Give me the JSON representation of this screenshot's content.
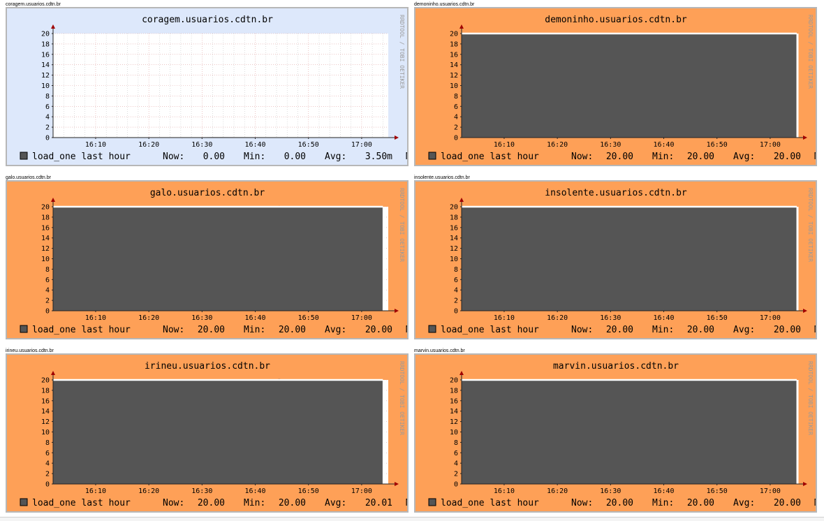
{
  "colors": {
    "normal_bg": "#dde8fb",
    "alert_bg": "#fea057",
    "area_fill": "#555555",
    "max_line": "#ffffff",
    "axis_arrow": "#a00000",
    "grid_major": "#e0a0a0",
    "grid_minor": "#c7c7c7",
    "frame_border": "#b7b7b7"
  },
  "watermark": "RRDTOOL / TOBI OETIKER",
  "graphs": [
    {
      "link_label": "coragem.usuarios.cdtn.br",
      "background": "normal",
      "chart_data": {
        "type": "area",
        "title": "coragem.usuarios.cdtn.br",
        "x_ticks": [
          "16:10",
          "16:20",
          "16:30",
          "16:40",
          "16:50",
          "17:00"
        ],
        "y_ticks": [
          0,
          2,
          4,
          6,
          8,
          10,
          12,
          14,
          16,
          18,
          20
        ],
        "ylim": [
          0,
          20
        ],
        "grid": true,
        "series": [
          {
            "name": "load_one last hour",
            "x": [
              "16:02",
              "16:30",
              "16:32",
              "16:45",
              "17:05"
            ],
            "values": [
              0,
              0,
              0.02,
              0,
              0
            ]
          }
        ],
        "stats": {
          "now_label": "Now:",
          "now": "0.00",
          "min_label": "Min:",
          "min": "0.00",
          "avg_label": "Avg:",
          "avg": "3.50m",
          "max_label": "M"
        }
      }
    },
    {
      "link_label": "demoninho.usuarios.cdtn.br",
      "background": "alert",
      "chart_data": {
        "type": "area",
        "title": "demoninho.usuarios.cdtn.br",
        "x_ticks": [
          "16:10",
          "16:20",
          "16:30",
          "16:40",
          "16:50",
          "17:00"
        ],
        "y_ticks": [
          0,
          2,
          4,
          6,
          8,
          10,
          12,
          14,
          16,
          18,
          20
        ],
        "ylim": [
          0,
          20
        ],
        "grid": true,
        "series": [
          {
            "name": "load_one last hour",
            "x": [
              "16:02",
              "16:30",
              "17:05"
            ],
            "values": [
              20,
              20,
              20
            ]
          }
        ],
        "stats": {
          "now_label": "Now:",
          "now": "20.00",
          "min_label": "Min:",
          "min": "20.00",
          "avg_label": "Avg:",
          "avg": "20.00",
          "max_label": "M"
        }
      }
    },
    {
      "link_label": "galo.usuarios.cdtn.br",
      "background": "alert",
      "chart_data": {
        "type": "area",
        "title": "galo.usuarios.cdtn.br",
        "x_ticks": [
          "16:10",
          "16:20",
          "16:30",
          "16:40",
          "16:50",
          "17:00"
        ],
        "y_ticks": [
          0,
          2,
          4,
          6,
          8,
          10,
          12,
          14,
          16,
          18,
          20
        ],
        "ylim": [
          0,
          20
        ],
        "grid": true,
        "series": [
          {
            "name": "load_one last hour",
            "x": [
              "16:02",
              "16:44",
              "16:44.5",
              "16:45",
              "17:04"
            ],
            "values": [
              20,
              20,
              20.1,
              20,
              20
            ]
          }
        ],
        "stats": {
          "now_label": "Now:",
          "now": "20.00",
          "min_label": "Min:",
          "min": "20.00",
          "avg_label": "Avg:",
          "avg": "20.00",
          "max_label": "M"
        }
      }
    },
    {
      "link_label": "insolente.usuarios.cdtn.br",
      "background": "alert",
      "chart_data": {
        "type": "area",
        "title": "insolente.usuarios.cdtn.br",
        "x_ticks": [
          "16:10",
          "16:20",
          "16:30",
          "16:40",
          "16:50",
          "17:00"
        ],
        "y_ticks": [
          0,
          2,
          4,
          6,
          8,
          10,
          12,
          14,
          16,
          18,
          20
        ],
        "ylim": [
          0,
          20
        ],
        "grid": true,
        "series": [
          {
            "name": "load_one last hour",
            "x": [
              "16:02",
              "16:30",
              "17:05"
            ],
            "values": [
              20,
              20,
              20
            ]
          }
        ],
        "stats": {
          "now_label": "Now:",
          "now": "20.00",
          "min_label": "Min:",
          "min": "20.00",
          "avg_label": "Avg:",
          "avg": "20.00",
          "max_label": "M"
        }
      }
    },
    {
      "link_label": "irineu.usuarios.cdtn.br",
      "background": "alert",
      "chart_data": {
        "type": "area",
        "title": "irineu.usuarios.cdtn.br",
        "x_ticks": [
          "16:10",
          "16:20",
          "16:30",
          "16:40",
          "16:50",
          "17:00"
        ],
        "y_ticks": [
          0,
          2,
          4,
          6,
          8,
          10,
          12,
          14,
          16,
          18,
          20
        ],
        "ylim": [
          0,
          20
        ],
        "grid": true,
        "series": [
          {
            "name": "load_one last hour",
            "x": [
              "16:02",
              "16:44",
              "16:44.5",
              "16:45",
              "17:04"
            ],
            "values": [
              20,
              20,
              20.15,
              20,
              20
            ]
          }
        ],
        "stats": {
          "now_label": "Now:",
          "now": "20.00",
          "min_label": "Min:",
          "min": "20.00",
          "avg_label": "Avg:",
          "avg": "20.01",
          "max_label": "M"
        }
      }
    },
    {
      "link_label": "marvin.usuarios.cdtn.br",
      "background": "alert",
      "chart_data": {
        "type": "area",
        "title": "marvin.usuarios.cdtn.br",
        "x_ticks": [
          "16:10",
          "16:20",
          "16:30",
          "16:40",
          "16:50",
          "17:00"
        ],
        "y_ticks": [
          0,
          2,
          4,
          6,
          8,
          10,
          12,
          14,
          16,
          18,
          20
        ],
        "ylim": [
          0,
          20
        ],
        "grid": true,
        "series": [
          {
            "name": "load_one last hour",
            "x": [
              "16:02",
              "16:30",
              "17:05"
            ],
            "values": [
              20,
              20,
              20
            ]
          }
        ],
        "stats": {
          "now_label": "Now:",
          "now": "20.00",
          "min_label": "Min:",
          "min": "20.00",
          "avg_label": "Avg:",
          "avg": "20.00",
          "max_label": "M"
        }
      }
    }
  ]
}
